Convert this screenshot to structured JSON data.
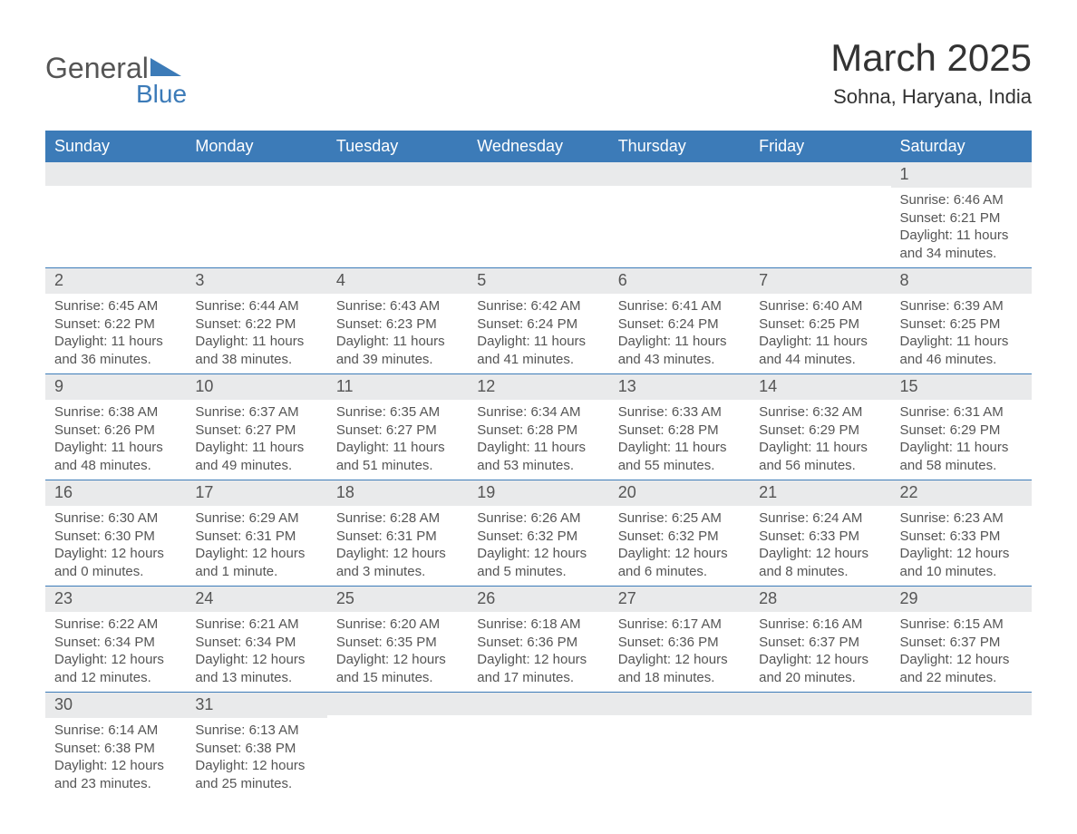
{
  "branding": {
    "logo_text_1": "General",
    "logo_text_2": "Blue",
    "logo_color_1": "#555555",
    "logo_color_2": "#3c7bb8"
  },
  "title": "March 2025",
  "location": "Sohna, Haryana, India",
  "colors": {
    "header_bg": "#3c7bb8",
    "header_fg": "#ffffff",
    "daynum_bg": "#e9eaeb",
    "daynum_fg": "#555555",
    "body_text": "#555555",
    "row_border": "#3c7bb8",
    "background": "#ffffff"
  },
  "fonts": {
    "title_size_pt": 42,
    "location_size_pt": 22,
    "dayhead_size_pt": 18,
    "daynum_size_pt": 18,
    "body_size_pt": 15
  },
  "day_headers": [
    "Sunday",
    "Monday",
    "Tuesday",
    "Wednesday",
    "Thursday",
    "Friday",
    "Saturday"
  ],
  "weeks": [
    [
      {
        "num": "",
        "lines": []
      },
      {
        "num": "",
        "lines": []
      },
      {
        "num": "",
        "lines": []
      },
      {
        "num": "",
        "lines": []
      },
      {
        "num": "",
        "lines": []
      },
      {
        "num": "",
        "lines": []
      },
      {
        "num": "1",
        "lines": [
          "Sunrise: 6:46 AM",
          "Sunset: 6:21 PM",
          "Daylight: 11 hours and 34 minutes."
        ]
      }
    ],
    [
      {
        "num": "2",
        "lines": [
          "Sunrise: 6:45 AM",
          "Sunset: 6:22 PM",
          "Daylight: 11 hours and 36 minutes."
        ]
      },
      {
        "num": "3",
        "lines": [
          "Sunrise: 6:44 AM",
          "Sunset: 6:22 PM",
          "Daylight: 11 hours and 38 minutes."
        ]
      },
      {
        "num": "4",
        "lines": [
          "Sunrise: 6:43 AM",
          "Sunset: 6:23 PM",
          "Daylight: 11 hours and 39 minutes."
        ]
      },
      {
        "num": "5",
        "lines": [
          "Sunrise: 6:42 AM",
          "Sunset: 6:24 PM",
          "Daylight: 11 hours and 41 minutes."
        ]
      },
      {
        "num": "6",
        "lines": [
          "Sunrise: 6:41 AM",
          "Sunset: 6:24 PM",
          "Daylight: 11 hours and 43 minutes."
        ]
      },
      {
        "num": "7",
        "lines": [
          "Sunrise: 6:40 AM",
          "Sunset: 6:25 PM",
          "Daylight: 11 hours and 44 minutes."
        ]
      },
      {
        "num": "8",
        "lines": [
          "Sunrise: 6:39 AM",
          "Sunset: 6:25 PM",
          "Daylight: 11 hours and 46 minutes."
        ]
      }
    ],
    [
      {
        "num": "9",
        "lines": [
          "Sunrise: 6:38 AM",
          "Sunset: 6:26 PM",
          "Daylight: 11 hours and 48 minutes."
        ]
      },
      {
        "num": "10",
        "lines": [
          "Sunrise: 6:37 AM",
          "Sunset: 6:27 PM",
          "Daylight: 11 hours and 49 minutes."
        ]
      },
      {
        "num": "11",
        "lines": [
          "Sunrise: 6:35 AM",
          "Sunset: 6:27 PM",
          "Daylight: 11 hours and 51 minutes."
        ]
      },
      {
        "num": "12",
        "lines": [
          "Sunrise: 6:34 AM",
          "Sunset: 6:28 PM",
          "Daylight: 11 hours and 53 minutes."
        ]
      },
      {
        "num": "13",
        "lines": [
          "Sunrise: 6:33 AM",
          "Sunset: 6:28 PM",
          "Daylight: 11 hours and 55 minutes."
        ]
      },
      {
        "num": "14",
        "lines": [
          "Sunrise: 6:32 AM",
          "Sunset: 6:29 PM",
          "Daylight: 11 hours and 56 minutes."
        ]
      },
      {
        "num": "15",
        "lines": [
          "Sunrise: 6:31 AM",
          "Sunset: 6:29 PM",
          "Daylight: 11 hours and 58 minutes."
        ]
      }
    ],
    [
      {
        "num": "16",
        "lines": [
          "Sunrise: 6:30 AM",
          "Sunset: 6:30 PM",
          "Daylight: 12 hours and 0 minutes."
        ]
      },
      {
        "num": "17",
        "lines": [
          "Sunrise: 6:29 AM",
          "Sunset: 6:31 PM",
          "Daylight: 12 hours and 1 minute."
        ]
      },
      {
        "num": "18",
        "lines": [
          "Sunrise: 6:28 AM",
          "Sunset: 6:31 PM",
          "Daylight: 12 hours and 3 minutes."
        ]
      },
      {
        "num": "19",
        "lines": [
          "Sunrise: 6:26 AM",
          "Sunset: 6:32 PM",
          "Daylight: 12 hours and 5 minutes."
        ]
      },
      {
        "num": "20",
        "lines": [
          "Sunrise: 6:25 AM",
          "Sunset: 6:32 PM",
          "Daylight: 12 hours and 6 minutes."
        ]
      },
      {
        "num": "21",
        "lines": [
          "Sunrise: 6:24 AM",
          "Sunset: 6:33 PM",
          "Daylight: 12 hours and 8 minutes."
        ]
      },
      {
        "num": "22",
        "lines": [
          "Sunrise: 6:23 AM",
          "Sunset: 6:33 PM",
          "Daylight: 12 hours and 10 minutes."
        ]
      }
    ],
    [
      {
        "num": "23",
        "lines": [
          "Sunrise: 6:22 AM",
          "Sunset: 6:34 PM",
          "Daylight: 12 hours and 12 minutes."
        ]
      },
      {
        "num": "24",
        "lines": [
          "Sunrise: 6:21 AM",
          "Sunset: 6:34 PM",
          "Daylight: 12 hours and 13 minutes."
        ]
      },
      {
        "num": "25",
        "lines": [
          "Sunrise: 6:20 AM",
          "Sunset: 6:35 PM",
          "Daylight: 12 hours and 15 minutes."
        ]
      },
      {
        "num": "26",
        "lines": [
          "Sunrise: 6:18 AM",
          "Sunset: 6:36 PM",
          "Daylight: 12 hours and 17 minutes."
        ]
      },
      {
        "num": "27",
        "lines": [
          "Sunrise: 6:17 AM",
          "Sunset: 6:36 PM",
          "Daylight: 12 hours and 18 minutes."
        ]
      },
      {
        "num": "28",
        "lines": [
          "Sunrise: 6:16 AM",
          "Sunset: 6:37 PM",
          "Daylight: 12 hours and 20 minutes."
        ]
      },
      {
        "num": "29",
        "lines": [
          "Sunrise: 6:15 AM",
          "Sunset: 6:37 PM",
          "Daylight: 12 hours and 22 minutes."
        ]
      }
    ],
    [
      {
        "num": "30",
        "lines": [
          "Sunrise: 6:14 AM",
          "Sunset: 6:38 PM",
          "Daylight: 12 hours and 23 minutes."
        ]
      },
      {
        "num": "31",
        "lines": [
          "Sunrise: 6:13 AM",
          "Sunset: 6:38 PM",
          "Daylight: 12 hours and 25 minutes."
        ]
      },
      {
        "num": "",
        "lines": []
      },
      {
        "num": "",
        "lines": []
      },
      {
        "num": "",
        "lines": []
      },
      {
        "num": "",
        "lines": []
      },
      {
        "num": "",
        "lines": []
      }
    ]
  ]
}
